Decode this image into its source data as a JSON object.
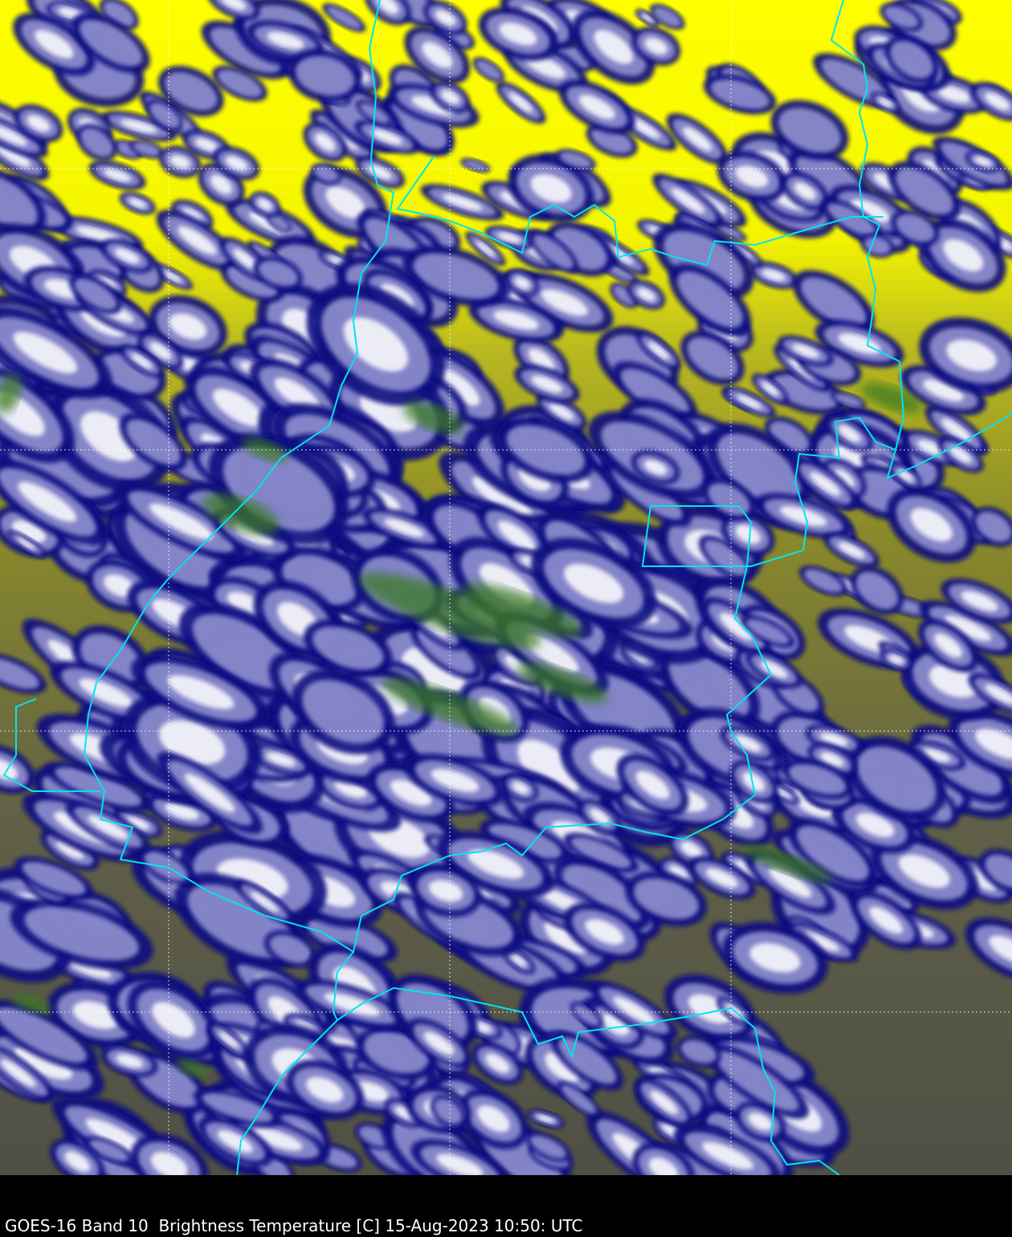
{
  "caption": "GOES-16 Band 10  Brightness Temperature [C] 15-Aug-2023 10:50: UTC",
  "colors": {
    "warm_clear": "#ffff00",
    "mid_clear": "#8a8a2a",
    "low_clear": "#55553f",
    "cloud_edge": "#0c0c80",
    "cloud_mid": "#9090d0",
    "cloud_top": "#ffffff",
    "coldest": "#3a7a20",
    "borders": "#00e5ee",
    "gridlines": "#ffffff"
  }
}
